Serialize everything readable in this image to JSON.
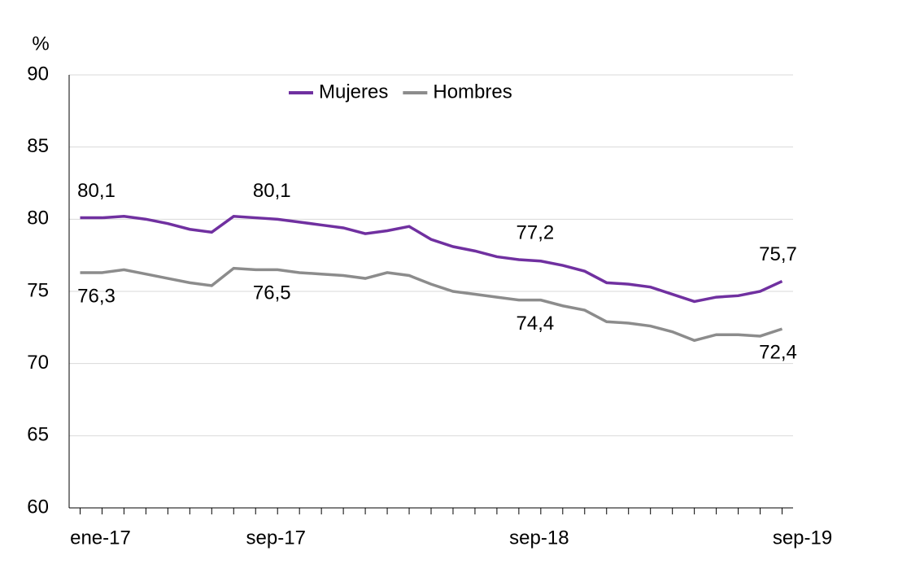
{
  "chart_data": {
    "type": "line",
    "y_label": "%",
    "categories": [
      "ene-17",
      null,
      null,
      null,
      null,
      null,
      null,
      null,
      "sep-17",
      null,
      null,
      null,
      null,
      null,
      null,
      null,
      null,
      null,
      null,
      null,
      "sep-18",
      null,
      null,
      null,
      null,
      null,
      null,
      null,
      null,
      null,
      null,
      null,
      "sep-19"
    ],
    "series": [
      {
        "name": "Mujeres",
        "color": "#7030a0",
        "values": [
          80.1,
          80.1,
          80.2,
          80.0,
          79.7,
          79.3,
          79.1,
          80.2,
          80.1,
          80.0,
          79.8,
          79.6,
          79.4,
          79.0,
          79.2,
          79.5,
          78.6,
          78.1,
          77.8,
          77.4,
          77.2,
          77.1,
          76.8,
          76.4,
          75.6,
          75.5,
          75.3,
          74.8,
          74.3,
          74.6,
          74.7,
          75.0,
          75.7
        ],
        "value_labels": [
          "80,1",
          null,
          null,
          null,
          null,
          null,
          null,
          null,
          "80,1",
          null,
          null,
          null,
          null,
          null,
          null,
          null,
          null,
          null,
          null,
          null,
          "77,2",
          null,
          null,
          null,
          null,
          null,
          null,
          null,
          null,
          null,
          null,
          null,
          "75,7"
        ]
      },
      {
        "name": "Hombres",
        "color": "#8c8c8c",
        "values": [
          76.3,
          76.3,
          76.5,
          76.2,
          75.9,
          75.6,
          75.4,
          76.6,
          76.5,
          76.5,
          76.3,
          76.2,
          76.1,
          75.9,
          76.3,
          76.1,
          75.5,
          75.0,
          74.8,
          74.6,
          74.4,
          74.4,
          74.0,
          73.7,
          72.9,
          72.8,
          72.6,
          72.2,
          71.6,
          72.0,
          72.0,
          71.9,
          72.4
        ],
        "value_labels": [
          "76,3",
          null,
          null,
          null,
          null,
          null,
          null,
          null,
          "76,5",
          null,
          null,
          null,
          null,
          null,
          null,
          null,
          null,
          null,
          null,
          null,
          "74,4",
          null,
          null,
          null,
          null,
          null,
          null,
          null,
          null,
          null,
          null,
          null,
          "72,4"
        ]
      }
    ],
    "ylim": [
      60,
      90
    ],
    "yticks": [
      60,
      65,
      70,
      75,
      80,
      85,
      90
    ],
    "grid": true
  }
}
